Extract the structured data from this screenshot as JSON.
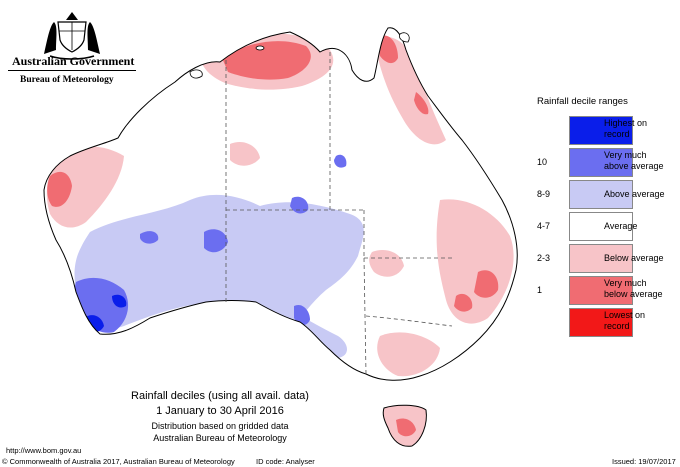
{
  "header": {
    "government": "Australian Government",
    "bureau": "Bureau of Meteorology"
  },
  "legend": {
    "title": "Rainfall decile ranges",
    "items": [
      {
        "code": "",
        "label_lines": [
          "Highest on",
          "record"
        ],
        "color": "#0a1eea"
      },
      {
        "code": "10",
        "label_lines": [
          "Very much",
          "above average"
        ],
        "color": "#6b6ef0"
      },
      {
        "code": "8-9",
        "label_lines": [
          "Above average"
        ],
        "color": "#c8caf4"
      },
      {
        "code": "4-7",
        "label_lines": [
          "Average"
        ],
        "color": "#ffffff"
      },
      {
        "code": "2-3",
        "label_lines": [
          "Below average"
        ],
        "color": "#f7c4c8"
      },
      {
        "code": "1",
        "label_lines": [
          "Very much",
          "below average"
        ],
        "color": "#f06c72"
      },
      {
        "code": "",
        "label_lines": [
          "Lowest on",
          "record"
        ],
        "color": "#f21818"
      }
    ]
  },
  "caption": {
    "title": "Rainfall deciles (using all avail. data)",
    "period": "1 January to 30 April 2016",
    "note": "Distribution based on gridded data",
    "source": "Australian Bureau of Meteorology"
  },
  "footer": {
    "url": "http://www.bom.gov.au",
    "copyright": "© Commonwealth of Australia 2017, Australian Bureau of Meteorology",
    "id_code": "ID code: Analyser",
    "issued": "Issued: 19/07/2017"
  }
}
